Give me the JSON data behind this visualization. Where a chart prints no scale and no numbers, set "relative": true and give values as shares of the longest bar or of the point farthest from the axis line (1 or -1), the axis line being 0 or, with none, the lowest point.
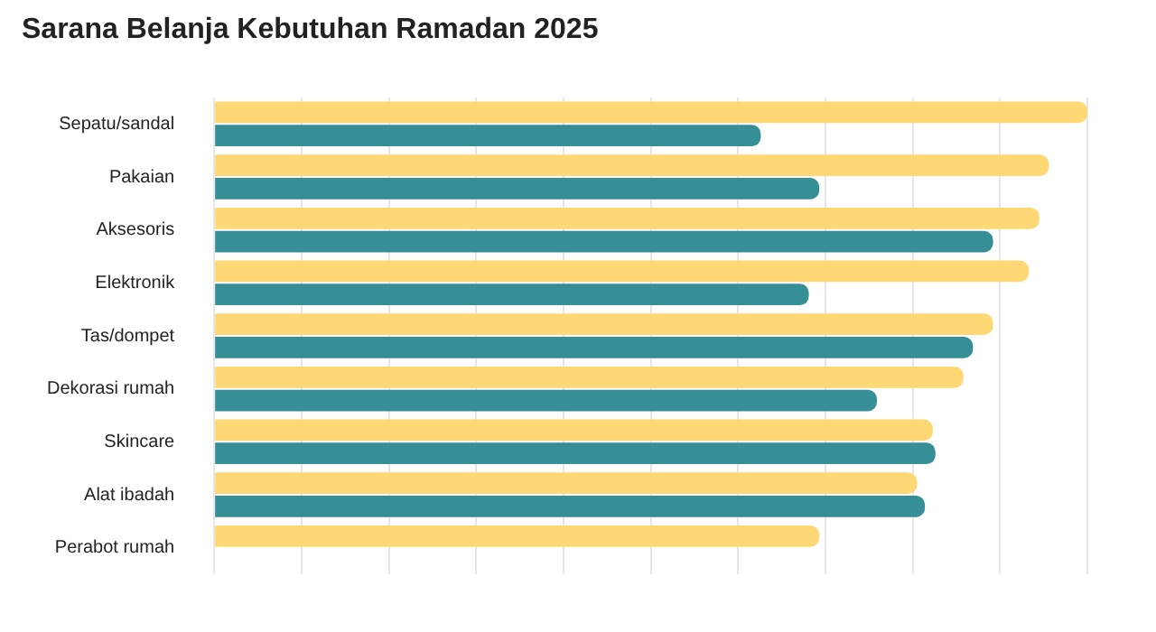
{
  "chart_data": {
    "type": "bar",
    "orientation": "horizontal",
    "relative": true,
    "title": "Sarana Belanja Kebutuhan Ramadan 2025",
    "categories": [
      "Sepatu/sandal",
      "Pakaian",
      "Aksesoris",
      "Elektronik",
      "Tas/dompet",
      "Dekorasi rumah",
      "Skincare",
      "Alat ibadah",
      "Perabot rumah"
    ],
    "series": [
      {
        "color": "#fdd874",
        "values": [
          1,
          0.956,
          0.945,
          0.933,
          0.892,
          0.858,
          0.823,
          0.805,
          0.693
        ]
      },
      {
        "color": "#368e96",
        "values": [
          0.626,
          0.693,
          0.892,
          0.681,
          0.869,
          0.759,
          0.826,
          0.814,
          null
        ]
      }
    ],
    "grid": "x",
    "legend": false
  }
}
